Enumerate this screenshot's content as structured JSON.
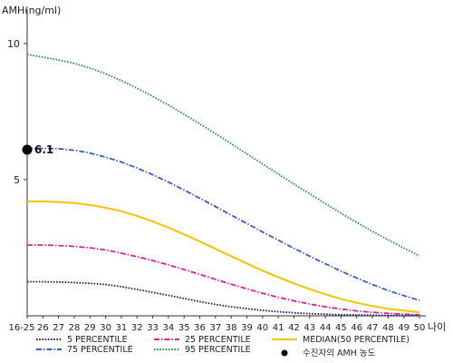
{
  "chart_data": {
    "type": "line",
    "ylabel": "AMH(ng/ml)",
    "xlabel": "나이",
    "ylim": [
      0,
      11
    ],
    "yticks": [
      5,
      10
    ],
    "categories": [
      "16-25",
      "26",
      "27",
      "28",
      "29",
      "30",
      "31",
      "32",
      "33",
      "34",
      "35",
      "36",
      "37",
      "38",
      "39",
      "40",
      "41",
      "42",
      "43",
      "44",
      "45",
      "46",
      "47",
      "48",
      "49",
      "50"
    ],
    "series": [
      {
        "name": "5 PERCENTILE",
        "color": "#1a1a6e",
        "dash": "dotted",
        "values": [
          1.25,
          1.25,
          1.24,
          1.22,
          1.19,
          1.15,
          1.07,
          0.97,
          0.86,
          0.75,
          0.64,
          0.52,
          0.42,
          0.33,
          0.26,
          0.2,
          0.15,
          0.11,
          0.08,
          0.06,
          0.04,
          0.03,
          0.02,
          0.01,
          0.01,
          0.01
        ]
      },
      {
        "name": "25 PERCENTILE",
        "color": "#e0218a",
        "dash": "dashdot",
        "values": [
          2.6,
          2.6,
          2.58,
          2.55,
          2.5,
          2.42,
          2.3,
          2.17,
          2.03,
          1.87,
          1.7,
          1.52,
          1.34,
          1.16,
          0.99,
          0.83,
          0.68,
          0.55,
          0.43,
          0.33,
          0.25,
          0.18,
          0.13,
          0.09,
          0.06,
          0.04
        ]
      },
      {
        "name": "MEDIAN(50 PERCENTILE)",
        "color": "#f2c500",
        "dash": "solid",
        "values": [
          4.2,
          4.2,
          4.18,
          4.14,
          4.07,
          3.97,
          3.84,
          3.67,
          3.47,
          3.24,
          2.99,
          2.73,
          2.46,
          2.19,
          1.92,
          1.66,
          1.42,
          1.19,
          0.98,
          0.79,
          0.62,
          0.48,
          0.36,
          0.26,
          0.19,
          0.13
        ]
      },
      {
        "name": "75 PERCENTILE",
        "color": "#3a5cc8",
        "dash": "dashdot",
        "values": [
          6.15,
          6.15,
          6.14,
          6.08,
          5.98,
          5.83,
          5.65,
          5.43,
          5.18,
          4.91,
          4.62,
          4.32,
          4.01,
          3.7,
          3.39,
          3.08,
          2.78,
          2.48,
          2.19,
          1.91,
          1.64,
          1.39,
          1.15,
          0.93,
          0.74,
          0.57
        ]
      },
      {
        "name": "95 PERCENTILE",
        "color": "#2e8b57",
        "dash": "dotted",
        "values": [
          9.6,
          9.5,
          9.4,
          9.27,
          9.1,
          8.89,
          8.64,
          8.36,
          8.06,
          7.74,
          7.4,
          7.05,
          6.69,
          6.32,
          5.95,
          5.58,
          5.21,
          4.84,
          4.48,
          4.12,
          3.77,
          3.43,
          3.1,
          2.79,
          2.49,
          2.2
        ]
      }
    ],
    "marker": {
      "name": "수진자의 AMH 농도",
      "x": "16-25",
      "y": 6.1,
      "label": "6.1",
      "color": "#000000"
    },
    "legend_position": "bottom",
    "grid": false
  }
}
